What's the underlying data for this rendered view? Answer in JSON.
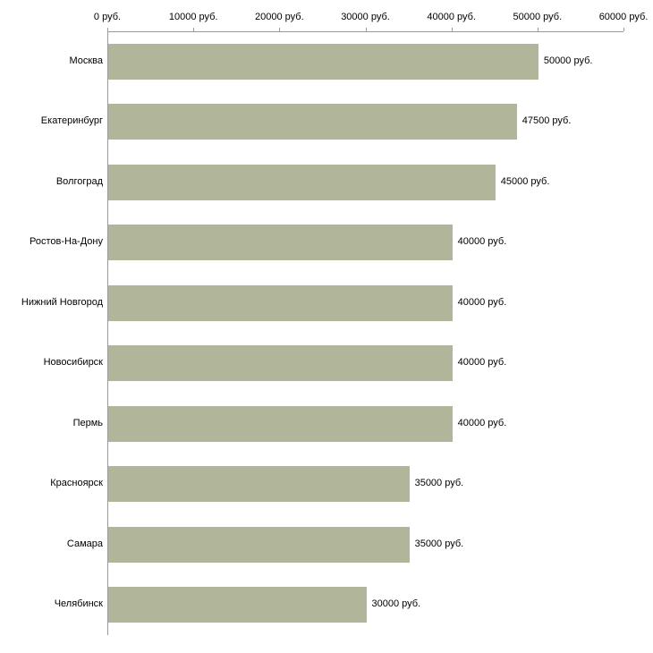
{
  "chart_data": {
    "type": "bar",
    "orientation": "horizontal",
    "title": "",
    "xlabel": "",
    "ylabel": "",
    "categories": [
      "Москва",
      "Екатеринбург",
      "Волгоград",
      "Ростов-На-Дону",
      "Нижний Новгород",
      "Новосибирск",
      "Пермь",
      "Красноярск",
      "Самара",
      "Челябинск"
    ],
    "values": [
      50000,
      47500,
      45000,
      40000,
      40000,
      40000,
      40000,
      35000,
      35000,
      30000
    ],
    "value_labels": [
      "50000 руб.",
      "47500 руб.",
      "45000 руб.",
      "40000 руб.",
      "40000 руб.",
      "40000 руб.",
      "40000 руб.",
      "35000 руб.",
      "35000 руб.",
      "30000 руб."
    ],
    "x_tick_values": [
      0,
      10000,
      20000,
      30000,
      40000,
      50000,
      60000
    ],
    "x_tick_labels": [
      "0 руб.",
      "10000 руб.",
      "20000 руб.",
      "30000 руб.",
      "40000 руб.",
      "50000 руб.",
      "60000 руб."
    ],
    "xlim": [
      0,
      60000
    ],
    "grid": false,
    "legend": "none",
    "bar_color": "#b1b69a",
    "axis_color": "#9a9a9a",
    "text_color": "#000000"
  }
}
